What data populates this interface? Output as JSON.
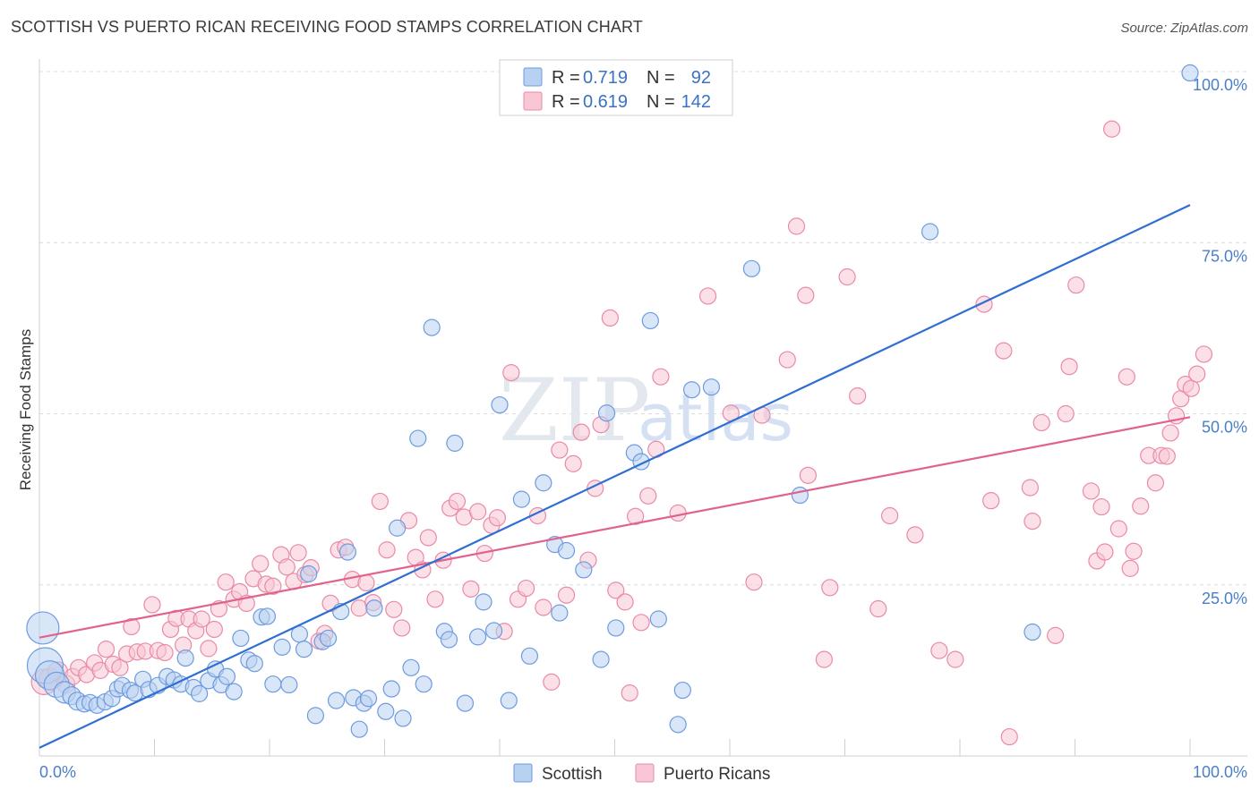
{
  "title": "SCOTTISH VS PUERTO RICAN RECEIVING FOOD STAMPS CORRELATION CHART",
  "source": "Source: ZipAtlas.com",
  "watermark": {
    "zip": "ZIP",
    "atlas": "atlas"
  },
  "colors": {
    "scottish_fill": "#b9d1f1",
    "scottish_stroke": "#6d9be0",
    "scottish_line": "#2f6fd1",
    "pr_fill": "#f8c6d4",
    "pr_stroke": "#e98aa6",
    "pr_line": "#e0628d",
    "grid": "#dcdcdc",
    "tick_text": "#4a7fc8"
  },
  "legend": {
    "rows": [
      {
        "r_label": "R =",
        "r_value": "0.719",
        "n_label": "N =",
        "n_value": "92"
      },
      {
        "r_label": "R =",
        "r_value": "0.619",
        "n_label": "N =",
        "n_value": "142"
      }
    ]
  },
  "chart_data": {
    "type": "scatter",
    "title": "SCOTTISH VS PUERTO RICAN RECEIVING FOOD STAMPS CORRELATION CHART",
    "xlabel": "",
    "ylabel": "Receiving Food Stamps",
    "xlim": [
      0,
      100
    ],
    "ylim": [
      0,
      100
    ],
    "x_tick_labels": [
      "0.0%",
      "100.0%"
    ],
    "y_tick_values": [
      25,
      50,
      75,
      100
    ],
    "y_tick_labels": [
      "25.0%",
      "50.0%",
      "75.0%",
      "100.0%"
    ],
    "grid": true,
    "legend_position": "top-center",
    "series": [
      {
        "name": "Scottish",
        "r": 0.719,
        "n": 92,
        "trend": {
          "x": [
            0,
            100
          ],
          "y": [
            1.2,
            80.5
          ]
        },
        "points": [
          [
            0.3,
            18.7,
            18
          ],
          [
            0.5,
            13.2,
            20
          ],
          [
            0.9,
            11.8,
            16
          ],
          [
            1.5,
            10.4,
            14
          ],
          [
            2.2,
            9.3,
            12
          ],
          [
            2.8,
            8.8,
            10
          ],
          [
            3.3,
            8.0,
            10
          ],
          [
            3.9,
            7.6,
            9
          ],
          [
            4.4,
            7.8,
            9
          ],
          [
            5.0,
            7.4,
            9
          ],
          [
            5.7,
            7.9,
            9
          ],
          [
            6.3,
            8.4,
            9
          ],
          [
            6.8,
            9.8,
            9
          ],
          [
            7.2,
            10.3,
            9
          ],
          [
            7.9,
            9.6,
            9
          ],
          [
            8.3,
            9.2,
            9
          ],
          [
            9.0,
            11.2,
            9
          ],
          [
            9.5,
            9.7,
            9
          ],
          [
            10.3,
            10.3,
            9
          ],
          [
            11.1,
            11.6,
            9
          ],
          [
            11.7,
            11.1,
            9
          ],
          [
            12.3,
            10.5,
            9
          ],
          [
            12.7,
            14.3,
            9
          ],
          [
            13.4,
            10.0,
            9
          ],
          [
            13.9,
            9.1,
            9
          ],
          [
            14.7,
            11.0,
            9
          ],
          [
            15.3,
            12.7,
            9
          ],
          [
            15.8,
            10.4,
            9
          ],
          [
            16.3,
            11.6,
            9
          ],
          [
            16.9,
            9.4,
            9
          ],
          [
            17.5,
            17.2,
            9
          ],
          [
            18.2,
            14.0,
            9
          ],
          [
            18.7,
            13.5,
            9
          ],
          [
            19.3,
            20.3,
            9
          ],
          [
            19.8,
            20.4,
            9
          ],
          [
            20.3,
            10.5,
            9
          ],
          [
            21.1,
            15.9,
            9
          ],
          [
            21.7,
            10.4,
            9
          ],
          [
            22.6,
            17.8,
            9
          ],
          [
            23.0,
            15.6,
            9
          ],
          [
            23.4,
            26.6,
            9
          ],
          [
            24.0,
            5.9,
            9
          ],
          [
            24.6,
            16.7,
            9
          ],
          [
            25.1,
            17.2,
            9
          ],
          [
            25.8,
            8.1,
            9
          ],
          [
            26.2,
            21.1,
            9
          ],
          [
            26.8,
            29.8,
            9
          ],
          [
            27.3,
            8.5,
            9
          ],
          [
            27.8,
            3.9,
            9
          ],
          [
            28.2,
            7.7,
            9
          ],
          [
            28.6,
            8.4,
            9
          ],
          [
            29.1,
            21.6,
            9
          ],
          [
            30.1,
            6.5,
            9
          ],
          [
            30.6,
            9.8,
            9
          ],
          [
            31.1,
            33.3,
            9
          ],
          [
            31.6,
            5.5,
            9
          ],
          [
            32.3,
            12.9,
            9
          ],
          [
            32.9,
            46.4,
            9
          ],
          [
            33.4,
            10.5,
            9
          ],
          [
            34.1,
            62.6,
            9
          ],
          [
            35.2,
            18.2,
            9
          ],
          [
            35.6,
            17.0,
            9
          ],
          [
            36.1,
            45.7,
            9
          ],
          [
            37.0,
            7.7,
            9
          ],
          [
            38.1,
            17.4,
            9
          ],
          [
            38.6,
            22.5,
            9
          ],
          [
            39.5,
            18.3,
            9
          ],
          [
            40.0,
            51.3,
            9
          ],
          [
            40.8,
            8.1,
            9
          ],
          [
            41.9,
            37.5,
            9
          ],
          [
            42.6,
            14.6,
            9
          ],
          [
            43.8,
            39.9,
            9
          ],
          [
            44.8,
            30.9,
            9
          ],
          [
            45.2,
            20.9,
            9
          ],
          [
            45.8,
            30.0,
            9
          ],
          [
            47.3,
            27.2,
            9
          ],
          [
            48.8,
            14.1,
            9
          ],
          [
            49.3,
            50.1,
            9
          ],
          [
            50.1,
            18.7,
            9
          ],
          [
            51.7,
            44.3,
            9
          ],
          [
            52.3,
            43.0,
            9
          ],
          [
            53.1,
            63.6,
            9
          ],
          [
            53.8,
            20.0,
            9
          ],
          [
            55.5,
            4.6,
            9
          ],
          [
            55.9,
            9.6,
            9
          ],
          [
            56.7,
            53.5,
            9
          ],
          [
            58.4,
            53.9,
            9
          ],
          [
            61.9,
            71.2,
            9
          ],
          [
            77.4,
            76.6,
            9
          ],
          [
            66.1,
            38.1,
            9
          ],
          [
            86.3,
            18.1,
            9
          ],
          [
            100.0,
            99.8,
            9
          ]
        ]
      },
      {
        "name": "Puerto Ricans",
        "r": 0.619,
        "n": 142,
        "trend": {
          "x": [
            0,
            100
          ],
          "y": [
            17.3,
            49.5
          ]
        },
        "points": [
          [
            0.4,
            10.8,
            14
          ],
          [
            0.9,
            11.2,
            12
          ],
          [
            1.6,
            12.3,
            11
          ],
          [
            2.3,
            10.5,
            10
          ],
          [
            2.9,
            11.6,
            9
          ],
          [
            3.4,
            12.9,
            9
          ],
          [
            4.1,
            11.9,
            9
          ],
          [
            4.8,
            13.6,
            9
          ],
          [
            5.3,
            12.5,
            9
          ],
          [
            5.8,
            15.6,
            9
          ],
          [
            6.4,
            13.4,
            9
          ],
          [
            7.0,
            12.9,
            9
          ],
          [
            7.6,
            14.9,
            9
          ],
          [
            8.0,
            18.9,
            9
          ],
          [
            8.5,
            15.2,
            9
          ],
          [
            9.2,
            15.3,
            9
          ],
          [
            9.8,
            22.1,
            9
          ],
          [
            10.3,
            15.4,
            9
          ],
          [
            10.9,
            15.1,
            9
          ],
          [
            11.4,
            18.5,
            9
          ],
          [
            11.9,
            20.1,
            9
          ],
          [
            12.5,
            16.2,
            9
          ],
          [
            13.0,
            20.0,
            9
          ],
          [
            13.6,
            18.3,
            9
          ],
          [
            14.1,
            20.0,
            9
          ],
          [
            14.7,
            15.7,
            9
          ],
          [
            15.2,
            18.5,
            9
          ],
          [
            15.6,
            21.5,
            9
          ],
          [
            16.2,
            25.4,
            9
          ],
          [
            16.9,
            22.9,
            9
          ],
          [
            17.4,
            24.0,
            9
          ],
          [
            18.0,
            22.3,
            9
          ],
          [
            18.6,
            25.9,
            9
          ],
          [
            19.2,
            28.1,
            9
          ],
          [
            19.7,
            25.1,
            9
          ],
          [
            20.3,
            24.8,
            9
          ],
          [
            21.0,
            29.4,
            9
          ],
          [
            21.5,
            27.6,
            9
          ],
          [
            22.1,
            25.5,
            9
          ],
          [
            22.5,
            29.7,
            9
          ],
          [
            23.1,
            26.5,
            9
          ],
          [
            23.6,
            27.5,
            9
          ],
          [
            24.3,
            16.8,
            9
          ],
          [
            24.8,
            17.9,
            9
          ],
          [
            25.3,
            22.3,
            9
          ],
          [
            26.0,
            30.1,
            9
          ],
          [
            26.6,
            30.5,
            9
          ],
          [
            27.2,
            25.8,
            9
          ],
          [
            27.8,
            21.6,
            9
          ],
          [
            28.4,
            25.3,
            9
          ],
          [
            29.0,
            22.4,
            9
          ],
          [
            29.6,
            37.2,
            9
          ],
          [
            30.2,
            30.1,
            9
          ],
          [
            30.8,
            21.4,
            9
          ],
          [
            31.5,
            18.7,
            9
          ],
          [
            32.1,
            34.4,
            9
          ],
          [
            32.7,
            29.0,
            9
          ],
          [
            33.3,
            27.2,
            9
          ],
          [
            33.8,
            31.9,
            9
          ],
          [
            34.4,
            22.9,
            9
          ],
          [
            35.1,
            28.6,
            9
          ],
          [
            35.7,
            36.2,
            9
          ],
          [
            36.3,
            37.2,
            9
          ],
          [
            36.9,
            34.9,
            9
          ],
          [
            37.5,
            24.4,
            9
          ],
          [
            38.1,
            35.7,
            9
          ],
          [
            38.7,
            29.6,
            9
          ],
          [
            39.3,
            33.7,
            9
          ],
          [
            39.8,
            34.8,
            9
          ],
          [
            40.4,
            18.2,
            9
          ],
          [
            41.0,
            56.0,
            9
          ],
          [
            41.6,
            22.9,
            9
          ],
          [
            42.3,
            24.5,
            9
          ],
          [
            43.3,
            35.1,
            9
          ],
          [
            43.8,
            21.7,
            9
          ],
          [
            44.5,
            10.8,
            9
          ],
          [
            45.2,
            44.7,
            9
          ],
          [
            45.8,
            23.5,
            9
          ],
          [
            46.4,
            42.7,
            9
          ],
          [
            47.1,
            47.3,
            9
          ],
          [
            47.7,
            28.6,
            9
          ],
          [
            48.3,
            39.1,
            9
          ],
          [
            48.8,
            48.4,
            9
          ],
          [
            49.6,
            64.0,
            9
          ],
          [
            50.1,
            24.2,
            9
          ],
          [
            50.9,
            22.5,
            9
          ],
          [
            51.3,
            9.2,
            9
          ],
          [
            51.8,
            35.0,
            9
          ],
          [
            52.3,
            19.5,
            9
          ],
          [
            52.9,
            38.0,
            9
          ],
          [
            53.6,
            44.8,
            9
          ],
          [
            54.0,
            55.4,
            9
          ],
          [
            55.5,
            35.5,
            9
          ],
          [
            58.1,
            67.2,
            9
          ],
          [
            60.1,
            50.1,
            9
          ],
          [
            62.1,
            25.4,
            9
          ],
          [
            62.8,
            49.8,
            9
          ],
          [
            65.0,
            57.9,
            9
          ],
          [
            65.8,
            77.4,
            9
          ],
          [
            66.6,
            67.3,
            9
          ],
          [
            66.8,
            41.0,
            9
          ],
          [
            68.2,
            14.1,
            9
          ],
          [
            68.7,
            24.6,
            9
          ],
          [
            70.2,
            70.0,
            9
          ],
          [
            71.1,
            52.6,
            9
          ],
          [
            72.9,
            21.5,
            9
          ],
          [
            73.9,
            35.1,
            9
          ],
          [
            76.1,
            32.3,
            9
          ],
          [
            78.2,
            15.4,
            9
          ],
          [
            79.6,
            14.1,
            9
          ],
          [
            82.1,
            66.0,
            9
          ],
          [
            82.7,
            37.3,
            9
          ],
          [
            83.8,
            59.2,
            9
          ],
          [
            84.3,
            2.8,
            9
          ],
          [
            86.1,
            39.2,
            9
          ],
          [
            86.3,
            34.3,
            9
          ],
          [
            87.1,
            48.7,
            9
          ],
          [
            88.3,
            17.6,
            9
          ],
          [
            89.2,
            50.0,
            9
          ],
          [
            89.5,
            56.9,
            9
          ],
          [
            90.1,
            68.8,
            9
          ],
          [
            91.4,
            38.7,
            9
          ],
          [
            91.9,
            28.5,
            9
          ],
          [
            92.3,
            36.4,
            9
          ],
          [
            92.6,
            29.8,
            9
          ],
          [
            93.2,
            91.6,
            9
          ],
          [
            93.8,
            33.2,
            9
          ],
          [
            94.5,
            55.4,
            9
          ],
          [
            94.8,
            27.4,
            9
          ],
          [
            95.1,
            29.9,
            9
          ],
          [
            95.7,
            36.5,
            9
          ],
          [
            96.4,
            43.9,
            9
          ],
          [
            97.0,
            39.9,
            9
          ],
          [
            97.5,
            43.9,
            9
          ],
          [
            98.0,
            43.8,
            9
          ],
          [
            98.3,
            47.2,
            9
          ],
          [
            98.8,
            49.7,
            9
          ],
          [
            99.2,
            52.2,
            9
          ],
          [
            99.6,
            54.3,
            9
          ],
          [
            100.1,
            53.7,
            9
          ],
          [
            100.6,
            55.8,
            9
          ],
          [
            101.2,
            58.7,
            9
          ]
        ]
      }
    ]
  }
}
